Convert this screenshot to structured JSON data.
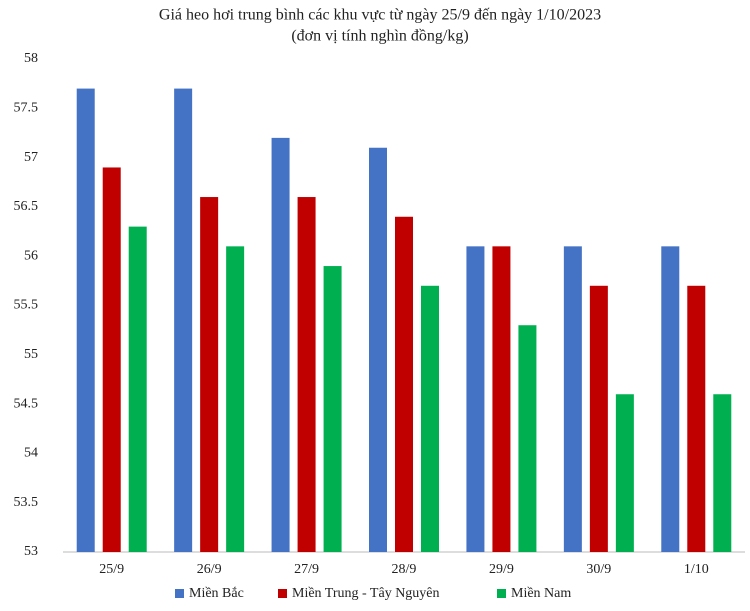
{
  "chart_data": {
    "type": "bar",
    "title": "Giá heo hơi trung bình các khu vực từ ngày 25/9 đến ngày 1/10/2023",
    "subtitle": "(đơn vị tính nghìn đồng/kg)",
    "categories": [
      "25/9",
      "26/9",
      "27/9",
      "28/9",
      "29/9",
      "30/9",
      "1/10"
    ],
    "series": [
      {
        "name": "Miền Bắc",
        "color": "#4472c4",
        "values": [
          57.7,
          57.7,
          57.2,
          57.1,
          56.1,
          56.1,
          56.1
        ]
      },
      {
        "name": "Miền Trung - Tây Nguyên",
        "color": "#c00000",
        "values": [
          56.9,
          56.6,
          56.6,
          56.4,
          56.1,
          55.7,
          55.7
        ]
      },
      {
        "name": "Miền Nam",
        "color": "#00b050",
        "values": [
          56.3,
          56.1,
          55.9,
          55.7,
          55.3,
          54.6,
          54.6
        ]
      }
    ],
    "ylim": [
      53,
      58
    ],
    "yticks": [
      53,
      53.5,
      54,
      54.5,
      55,
      55.5,
      56,
      56.5,
      57,
      57.5,
      58
    ],
    "grid": false
  }
}
